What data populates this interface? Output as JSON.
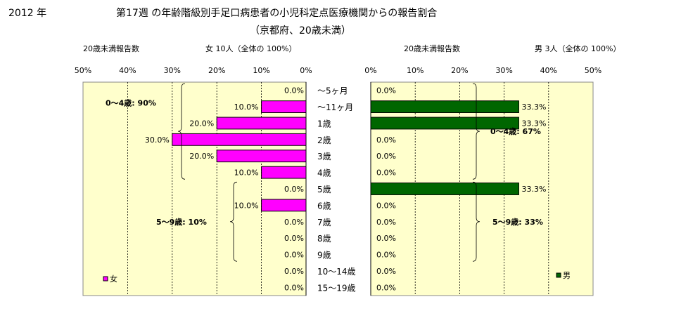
{
  "title": {
    "year": "2012 年",
    "main": "第17週 の年齢階級別手足口病患者の小児科定点医療機関からの報告割合",
    "sub": "（京都府、20歳未満）"
  },
  "summary": {
    "left_label": "20歳未満報告数",
    "left_value": "女 10人（全体の 100%）",
    "right_label": "20歳未満報告数",
    "right_value": "男 3人（全体の 100%）"
  },
  "colors": {
    "female_bar": "#ff00ff",
    "male_bar": "#006600",
    "plot_bg": "#ffffcc"
  },
  "chart_data": [
    {
      "type": "bar",
      "orientation": "horizontal",
      "direction": "right-to-left",
      "categories": [
        "～5ヶ月",
        "～11ヶ月",
        "1歳",
        "2歳",
        "3歳",
        "4歳",
        "5歳",
        "6歳",
        "7歳",
        "8歳",
        "9歳",
        "10～14歳",
        "15～19歳"
      ],
      "series": [
        {
          "name": "女",
          "values": [
            0.0,
            10.0,
            20.0,
            30.0,
            20.0,
            10.0,
            0.0,
            10.0,
            0.0,
            0.0,
            0.0,
            0.0,
            0.0
          ]
        }
      ],
      "value_labels": [
        "0.0%",
        "10.0%",
        "20.0%",
        "30.0%",
        "20.0%",
        "10.0%",
        "0.0%",
        "10.0%",
        "0.0%",
        "0.0%",
        "0.0%",
        "0.0%",
        "0.0%"
      ],
      "xlim": [
        0,
        50
      ],
      "xticks": [
        "50%",
        "40%",
        "30%",
        "20%",
        "10%",
        "0%"
      ],
      "grid": true,
      "legend": "bottom-left",
      "annotations": [
        {
          "text": "0～4歳: 90%",
          "group": "0-4"
        },
        {
          "text": "5～9歳: 10%",
          "group": "5-9"
        }
      ]
    },
    {
      "type": "bar",
      "orientation": "horizontal",
      "direction": "left-to-right",
      "categories": [
        "～5ヶ月",
        "～11ヶ月",
        "1歳",
        "2歳",
        "3歳",
        "4歳",
        "5歳",
        "6歳",
        "7歳",
        "8歳",
        "9歳",
        "10～14歳",
        "15～19歳"
      ],
      "series": [
        {
          "name": "男",
          "values": [
            0.0,
            33.3,
            33.3,
            0.0,
            0.0,
            0.0,
            33.3,
            0.0,
            0.0,
            0.0,
            0.0,
            0.0,
            0.0
          ]
        }
      ],
      "value_labels": [
        "0.0%",
        "33.3%",
        "33.3%",
        "0.0%",
        "0.0%",
        "0.0%",
        "33.3%",
        "0.0%",
        "0.0%",
        "0.0%",
        "0.0%",
        "0.0%",
        "0.0%"
      ],
      "xlim": [
        0,
        50
      ],
      "xticks": [
        "0%",
        "10%",
        "20%",
        "30%",
        "40%",
        "50%"
      ],
      "grid": true,
      "legend": "bottom-right",
      "annotations": [
        {
          "text": "0～4歳: 67%",
          "group": "0-4"
        },
        {
          "text": "5～9歳: 33%",
          "group": "5-9"
        }
      ]
    }
  ]
}
